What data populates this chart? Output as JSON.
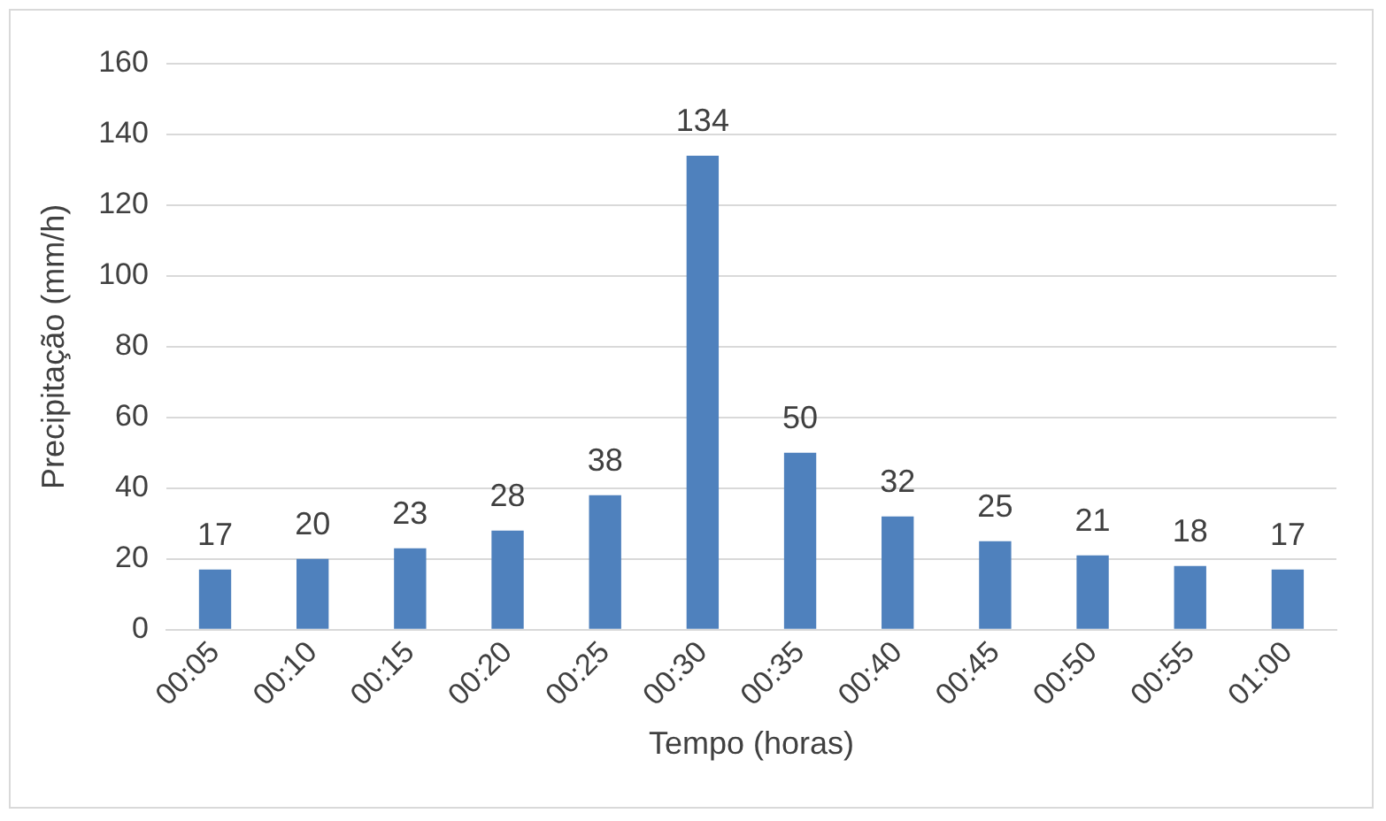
{
  "chart_data": {
    "type": "bar",
    "xlabel": "Tempo (horas)",
    "ylabel": "Precipitação (mm/h)",
    "categories": [
      "00:05",
      "00:10",
      "00:15",
      "00:20",
      "00:25",
      "00:30",
      "00:35",
      "00:40",
      "00:45",
      "00:50",
      "00:55",
      "01:00"
    ],
    "series": [
      {
        "color": "#4f81bd",
        "values": [
          17,
          20,
          23,
          28,
          38,
          134,
          50,
          32,
          25,
          21,
          18,
          17
        ]
      }
    ],
    "ylim": [
      0,
      160
    ],
    "yticks": [
      0,
      20,
      40,
      60,
      80,
      100,
      120,
      140,
      160
    ],
    "grid": "y",
    "data_labels": true
  }
}
